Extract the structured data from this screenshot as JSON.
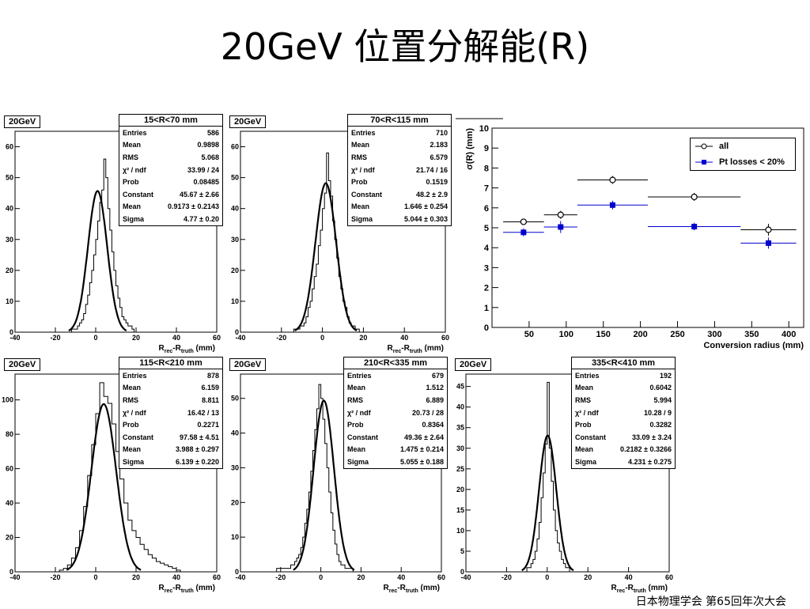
{
  "title": "20GeV 位置分解能(R)",
  "footer": "日本物理学会 第65回年次大会",
  "histograms": [
    {
      "tag": "20GeV",
      "range_title": "15<R<70 mm",
      "ylabel_ticks": [
        0,
        10,
        20,
        30,
        40,
        50,
        60
      ],
      "xticks": [
        -40,
        -20,
        0,
        20,
        40,
        60
      ],
      "xlabel_main": "R",
      "xlabel_sub1": "rec",
      "xlabel_mid": "-R",
      "xlabel_sub2": "truth",
      "xlabel_unit": " (mm)",
      "stats": [
        {
          "k": "Entries",
          "v": "586"
        },
        {
          "k": "Mean",
          "v": "0.9898"
        },
        {
          "k": "RMS",
          "v": "5.068"
        },
        {
          "k": "χ² / ndf",
          "v": "33.99 / 24"
        },
        {
          "k": "Prob",
          "v": "0.08485"
        },
        {
          "k": "Constant",
          "v": "45.67 ± 2.66"
        },
        {
          "k": "Mean",
          "v": "0.9173 ± 0.2143"
        },
        {
          "k": "Sigma",
          "v": "4.77 ± 0.20"
        }
      ]
    },
    {
      "tag": "20GeV",
      "range_title": "70<R<115 mm",
      "ylabel_ticks": [
        0,
        10,
        20,
        30,
        40,
        50,
        60
      ],
      "xticks": [
        -40,
        -20,
        0,
        20,
        40,
        60
      ],
      "xlabel_main": "R",
      "xlabel_sub1": "rec",
      "xlabel_mid": "-R",
      "xlabel_sub2": "truth",
      "xlabel_unit": " (mm)",
      "stats": [
        {
          "k": "Entries",
          "v": "710"
        },
        {
          "k": "Mean",
          "v": "2.183"
        },
        {
          "k": "RMS",
          "v": "6.579"
        },
        {
          "k": "χ² / ndf",
          "v": "21.74 / 16"
        },
        {
          "k": "Prob",
          "v": "0.1519"
        },
        {
          "k": "Constant",
          "v": "48.2 ± 2.9"
        },
        {
          "k": "Mean",
          "v": "1.646 ± 0.254"
        },
        {
          "k": "Sigma",
          "v": "5.044 ± 0.303"
        }
      ]
    },
    {
      "tag": "20GeV",
      "range_title": "115<R<210 mm",
      "ylabel_ticks": [
        0,
        20,
        40,
        60,
        80,
        100
      ],
      "xticks": [
        -40,
        -20,
        0,
        20,
        40,
        60
      ],
      "xlabel_main": "R",
      "xlabel_sub1": "rec",
      "xlabel_mid": "-R",
      "xlabel_sub2": "truth",
      "xlabel_unit": " (mm)",
      "stats": [
        {
          "k": "Entries",
          "v": "878"
        },
        {
          "k": "Mean",
          "v": "6.159"
        },
        {
          "k": "RMS",
          "v": "8.811"
        },
        {
          "k": "χ² / ndf",
          "v": "16.42 / 13"
        },
        {
          "k": "Prob",
          "v": "0.2271"
        },
        {
          "k": "Constant",
          "v": "97.58 ± 4.51"
        },
        {
          "k": "Mean",
          "v": "3.988 ± 0.297"
        },
        {
          "k": "Sigma",
          "v": "6.139 ± 0.220"
        }
      ]
    },
    {
      "tag": "20GeV",
      "range_title": "210<R<335 mm",
      "ylabel_ticks": [
        0,
        10,
        20,
        30,
        40,
        50
      ],
      "xticks": [
        -40,
        -20,
        0,
        20,
        40,
        60
      ],
      "xlabel_main": "R",
      "xlabel_sub1": "rec",
      "xlabel_mid": "-R",
      "xlabel_sub2": "truth",
      "xlabel_unit": " (mm)",
      "stats": [
        {
          "k": "Entries",
          "v": "679"
        },
        {
          "k": "Mean",
          "v": "1.512"
        },
        {
          "k": "RMS",
          "v": "6.889"
        },
        {
          "k": "χ² / ndf",
          "v": "20.73 / 28"
        },
        {
          "k": "Prob",
          "v": "0.8364"
        },
        {
          "k": "Constant",
          "v": "49.36 ± 2.64"
        },
        {
          "k": "Mean",
          "v": "1.475 ± 0.214"
        },
        {
          "k": "Sigma",
          "v": "5.055 ± 0.188"
        }
      ]
    },
    {
      "tag": "20GeV",
      "range_title": "335<R<410 mm",
      "ylabel_ticks": [
        0,
        5,
        10,
        15,
        20,
        25,
        30,
        35,
        40,
        45
      ],
      "xticks": [
        -40,
        -20,
        0,
        20,
        40,
        60
      ],
      "xlabel_main": "R",
      "xlabel_sub1": "rec",
      "xlabel_mid": "-R",
      "xlabel_sub2": "truth",
      "xlabel_unit": " (mm)",
      "stats": [
        {
          "k": "Entries",
          "v": "192"
        },
        {
          "k": "Mean",
          "v": "0.6042"
        },
        {
          "k": "RMS",
          "v": "5.994"
        },
        {
          "k": "χ² / ndf",
          "v": "10.28 / 9"
        },
        {
          "k": "Prob",
          "v": "0.3282"
        },
        {
          "k": "Constant",
          "v": "33.09 ± 3.24"
        },
        {
          "k": "Mean",
          "v": "0.2182 ± 0.3266"
        },
        {
          "k": "Sigma",
          "v": "4.231 ± 0.275"
        }
      ]
    }
  ],
  "summary": {
    "ylabel": "σ(R) (mm)",
    "xlabel": "Conversion radius (mm)",
    "legend": [
      {
        "label": "all",
        "color": "#000000"
      },
      {
        "label": "Pt losses < 20%",
        "color": "#0000cc"
      }
    ]
  },
  "chart_data": [
    {
      "type": "histogram",
      "title": "15<R<70 mm",
      "xlabel": "Rrec-Rtruth (mm)",
      "xlim": [
        -40,
        60
      ],
      "ylim": [
        0,
        65
      ],
      "fit": {
        "function": "gaus",
        "constant": 45.67,
        "mean": 0.9173,
        "sigma": 4.77
      },
      "bins_start": -12,
      "bin_width": 1,
      "counts": [
        1,
        1,
        1,
        2,
        3,
        4,
        6,
        9,
        12,
        16,
        20,
        25,
        30,
        36,
        42,
        46,
        56,
        50,
        40,
        33,
        26,
        20,
        15,
        11,
        8,
        5,
        4,
        3,
        2,
        2,
        1
      ]
    },
    {
      "type": "histogram",
      "title": "70<R<115 mm",
      "xlabel": "Rrec-Rtruth (mm)",
      "xlim": [
        -40,
        60
      ],
      "ylim": [
        0,
        65
      ],
      "fit": {
        "function": "gaus",
        "constant": 48.2,
        "mean": 1.646,
        "sigma": 5.044
      },
      "bins_start": -14,
      "bin_width": 1,
      "counts": [
        1,
        1,
        1,
        2,
        2,
        3,
        5,
        8,
        10,
        14,
        18,
        22,
        28,
        33,
        40,
        45,
        58,
        49,
        44,
        36,
        30,
        24,
        18,
        14,
        10,
        8,
        5,
        3,
        2,
        2,
        1,
        1
      ]
    },
    {
      "type": "histogram",
      "title": "115<R<210 mm",
      "xlabel": "Rrec-Rtruth (mm)",
      "xlim": [
        -40,
        60
      ],
      "ylim": [
        0,
        115
      ],
      "fit": {
        "function": "gaus",
        "constant": 97.58,
        "mean": 3.988,
        "sigma": 6.139
      },
      "bins_start": -18,
      "bin_width": 2,
      "counts": [
        1,
        2,
        4,
        8,
        14,
        24,
        38,
        56,
        74,
        92,
        110,
        102,
        98,
        86,
        70,
        54,
        40,
        30,
        24,
        20,
        16,
        13,
        10,
        8,
        6,
        5,
        4,
        3,
        2,
        1
      ]
    },
    {
      "type": "histogram",
      "title": "210<R<335 mm",
      "xlabel": "Rrec-Rtruth (mm)",
      "xlim": [
        -40,
        60
      ],
      "ylim": [
        0,
        57
      ],
      "fit": {
        "function": "gaus",
        "constant": 49.36,
        "mean": 1.475,
        "sigma": 5.055
      },
      "bins_start": -22,
      "bin_width": 1,
      "counts": [
        1,
        1,
        1,
        1,
        1,
        1,
        1,
        2,
        2,
        3,
        4,
        5,
        7,
        10,
        14,
        18,
        23,
        29,
        35,
        41,
        47,
        54,
        50,
        44,
        37,
        30,
        23,
        17,
        12,
        8,
        5,
        3,
        2,
        2,
        1,
        1,
        1,
        1
      ]
    },
    {
      "type": "histogram",
      "title": "335<R<410 mm",
      "xlabel": "Rrec-Rtruth (mm)",
      "xlim": [
        -40,
        60
      ],
      "ylim": [
        0,
        48
      ],
      "fit": {
        "function": "gaus",
        "constant": 33.09,
        "mean": 0.2182,
        "sigma": 4.231
      },
      "bins_start": -10,
      "bin_width": 1,
      "counts": [
        1,
        1,
        2,
        3,
        5,
        8,
        12,
        18,
        24,
        31,
        46,
        30,
        22,
        15,
        10,
        7,
        5,
        3,
        2,
        1,
        1
      ]
    },
    {
      "type": "scatter",
      "title": "",
      "xlabel": "Conversion radius (mm)",
      "ylabel": "σ(R) (mm)",
      "xlim": [
        0,
        420
      ],
      "ylim": [
        0,
        10
      ],
      "series": [
        {
          "name": "all",
          "color": "#000000",
          "points": [
            {
              "x": 42.5,
              "y": 5.3,
              "xerr": 27.5,
              "yerr": 0.15
            },
            {
              "x": 92.5,
              "y": 5.65,
              "xerr": 22.5,
              "yerr": 0.2
            },
            {
              "x": 162.5,
              "y": 7.4,
              "xerr": 47.5,
              "yerr": 0.2
            },
            {
              "x": 272.5,
              "y": 6.55,
              "xerr": 62.5,
              "yerr": 0.2
            },
            {
              "x": 372.5,
              "y": 4.9,
              "xerr": 37.5,
              "yerr": 0.3
            }
          ]
        },
        {
          "name": "Pt losses < 20%",
          "color": "#0000cc",
          "points": [
            {
              "x": 42.5,
              "y": 4.77,
              "xerr": 27.5,
              "yerr": 0.2
            },
            {
              "x": 92.5,
              "y": 5.04,
              "xerr": 22.5,
              "yerr": 0.3
            },
            {
              "x": 162.5,
              "y": 6.14,
              "xerr": 47.5,
              "yerr": 0.22
            },
            {
              "x": 272.5,
              "y": 5.06,
              "xerr": 62.5,
              "yerr": 0.19
            },
            {
              "x": 372.5,
              "y": 4.23,
              "xerr": 37.5,
              "yerr": 0.28
            }
          ]
        }
      ]
    }
  ]
}
